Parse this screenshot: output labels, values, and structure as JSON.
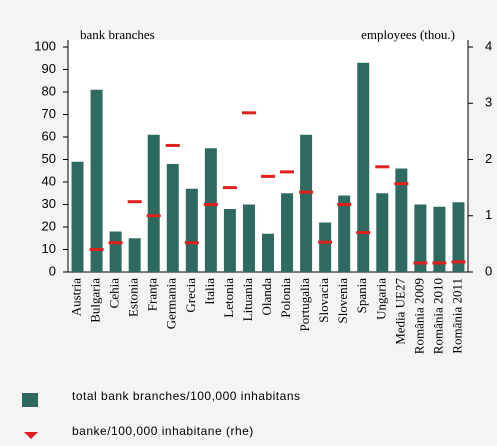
{
  "chart_data": {
    "type": "bar",
    "annotations": [
      "bank branches",
      "employees (thou.)"
    ],
    "categories": [
      "Austria",
      "Bulgaria",
      "Cehia",
      "Estonia",
      "Franța",
      "Germania",
      "Grecia",
      "Italia",
      "Letonia",
      "Lituania",
      "Olanda",
      "Polonia",
      "Portugalia",
      "Slovacia",
      "Slovenia",
      "Spania",
      "Ungaria",
      "Media UE27",
      "România 2009",
      "România 2010",
      "România 2011"
    ],
    "series": [
      {
        "name": "total bank branches/100,000 inhabitans",
        "color": "#2f6a60",
        "values": [
          49,
          81,
          18,
          15,
          61,
          48,
          37,
          55,
          28,
          30,
          17,
          35,
          61,
          22,
          34,
          93,
          35,
          46,
          30,
          29,
          31
        ]
      },
      {
        "name": "banke/100,000 inhabitane (rhe)",
        "color": "#e0201c",
        "axis": "y2",
        "values": [
          null,
          0.4,
          0.52,
          1.25,
          1.0,
          2.25,
          0.52,
          1.2,
          1.5,
          2.83,
          1.7,
          1.78,
          1.42,
          0.53,
          1.2,
          0.7,
          1.87,
          1.57,
          0.16,
          0.16,
          0.18
        ]
      }
    ],
    "ylim": [
      0,
      100
    ],
    "yticks": [
      0,
      10,
      20,
      30,
      40,
      50,
      60,
      70,
      80,
      90,
      100
    ],
    "y2lim": [
      0,
      4
    ],
    "y2ticks": [
      0,
      1,
      2,
      3,
      4
    ]
  }
}
